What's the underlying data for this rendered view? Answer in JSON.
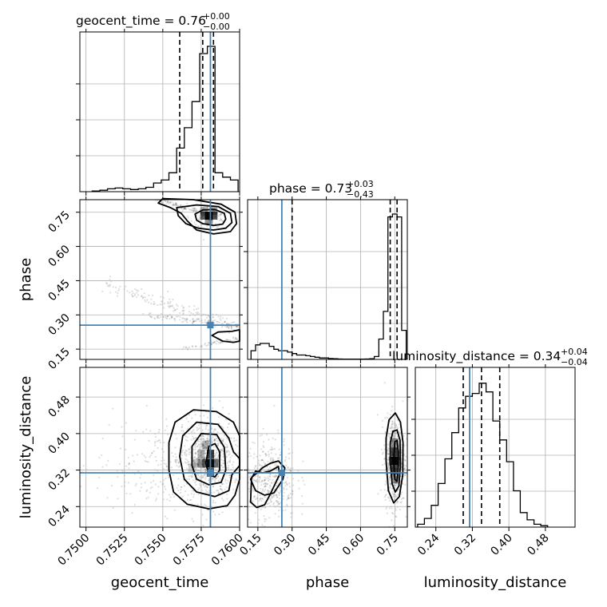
{
  "chart_data": {
    "type": "corner",
    "parameters": [
      "geocent_time",
      "phase",
      "luminosity_distance"
    ],
    "truth_color": "#4682b4",
    "truths": {
      "geocent_time": 0.7581,
      "phase": 0.255,
      "luminosity_distance": 0.314
    },
    "ranges": {
      "geocent_time": [
        0.7496,
        0.76
      ],
      "phase": [
        0.105,
        0.805
      ],
      "luminosity_distance": [
        0.195,
        0.545
      ]
    },
    "ticks": {
      "geocent_time": [
        "0.7500",
        "0.7525",
        "0.7550",
        "0.7575",
        "0.7600"
      ],
      "phase": [
        "0.15",
        "0.30",
        "0.45",
        "0.60",
        "0.75"
      ],
      "luminosity_distance": [
        "0.24",
        "0.32",
        "0.40",
        "0.48"
      ]
    },
    "titles": {
      "geocent_time": {
        "text": "geocent_time = 0.76",
        "plus": "+0.00",
        "minus": "−0.00"
      },
      "phase": {
        "text": "phase = 0.73",
        "plus": "+0.03",
        "minus": "−0.43"
      },
      "luminosity_distance": {
        "text": "luminosity_distance = 0.34",
        "plus": "+0.04",
        "minus": "−0.04"
      }
    },
    "quantiles": {
      "geocent_time": [
        0.7561,
        0.7576,
        0.7583
      ],
      "phase": [
        0.3,
        0.73,
        0.76
      ],
      "luminosity_distance": [
        0.3,
        0.34,
        0.38
      ]
    },
    "histograms": {
      "geocent_time": {
        "edges": [
          0.7504,
          0.7509,
          0.7514,
          0.7519,
          0.7524,
          0.7529,
          0.7534,
          0.7539,
          0.7544,
          0.7549,
          0.7554,
          0.7559,
          0.7564,
          0.7569,
          0.7574,
          0.7579,
          0.7584,
          0.7589,
          0.7594,
          0.7599
        ],
        "counts": [
          0.005,
          0.01,
          0.02,
          0.025,
          0.02,
          0.015,
          0.02,
          0.03,
          0.06,
          0.08,
          0.13,
          0.3,
          0.44,
          0.62,
          0.95,
          1.0,
          0.13,
          0.1,
          0.08
        ]
      },
      "phase": {
        "edges": [
          0.12,
          0.14,
          0.16,
          0.18,
          0.2,
          0.22,
          0.24,
          0.26,
          0.28,
          0.3,
          0.32,
          0.34,
          0.36,
          0.38,
          0.4,
          0.42,
          0.44,
          0.46,
          0.48,
          0.5,
          0.52,
          0.54,
          0.56,
          0.58,
          0.6,
          0.62,
          0.64,
          0.66,
          0.68,
          0.7,
          0.72,
          0.74,
          0.76,
          0.78,
          0.8
        ],
        "counts": [
          0.06,
          0.1,
          0.11,
          0.11,
          0.09,
          0.07,
          0.06,
          0.06,
          0.05,
          0.04,
          0.03,
          0.03,
          0.025,
          0.02,
          0.015,
          0.01,
          0.01,
          0.006,
          0.005,
          0.003,
          0.002,
          0.002,
          0.002,
          0.002,
          0.002,
          0.003,
          0.005,
          0.02,
          0.14,
          0.33,
          0.98,
          1.0,
          0.98,
          0.2
        ]
      },
      "luminosity_distance": {
        "edges": [
          0.2,
          0.215,
          0.23,
          0.245,
          0.26,
          0.275,
          0.29,
          0.305,
          0.32,
          0.335,
          0.35,
          0.365,
          0.38,
          0.395,
          0.41,
          0.425,
          0.44,
          0.455,
          0.47,
          0.485
        ],
        "counts": [
          0.02,
          0.06,
          0.15,
          0.3,
          0.47,
          0.65,
          0.82,
          0.9,
          0.92,
          0.99,
          0.93,
          0.73,
          0.6,
          0.45,
          0.25,
          0.1,
          0.05,
          0.02,
          0.01
        ]
      }
    },
    "contours": {
      "phase_vs_geocent_time": [
        [
          [
            0.7572,
            0.715
          ],
          [
            0.7576,
            0.7
          ],
          [
            0.7583,
            0.692
          ],
          [
            0.7589,
            0.698
          ],
          [
            0.7591,
            0.72
          ],
          [
            0.759,
            0.745
          ],
          [
            0.7584,
            0.762
          ],
          [
            0.7576,
            0.76
          ],
          [
            0.7571,
            0.742
          ],
          [
            0.7572,
            0.715
          ]
        ],
        [
          [
            0.756,
            0.735
          ],
          [
            0.7565,
            0.7
          ],
          [
            0.7573,
            0.68
          ],
          [
            0.7583,
            0.672
          ],
          [
            0.7591,
            0.68
          ],
          [
            0.7595,
            0.705
          ],
          [
            0.7594,
            0.745
          ],
          [
            0.7586,
            0.775
          ],
          [
            0.7572,
            0.782
          ],
          [
            0.7559,
            0.77
          ],
          [
            0.756,
            0.735
          ]
        ],
        [
          [
            0.7547,
            0.79
          ],
          [
            0.7555,
            0.77
          ],
          [
            0.7562,
            0.745
          ],
          [
            0.7566,
            0.712
          ],
          [
            0.7572,
            0.672
          ],
          [
            0.7583,
            0.655
          ],
          [
            0.7594,
            0.665
          ],
          [
            0.7598,
            0.7
          ],
          [
            0.7597,
            0.75
          ],
          [
            0.7588,
            0.785
          ],
          [
            0.757,
            0.805
          ],
          [
            0.755,
            0.81
          ],
          [
            0.7547,
            0.79
          ]
        ],
        [
          [
            0.7582,
            0.21
          ],
          [
            0.7589,
            0.185
          ],
          [
            0.7596,
            0.18
          ],
          [
            0.76,
            0.185
          ],
          [
            0.76,
            0.235
          ],
          [
            0.7595,
            0.228
          ],
          [
            0.7586,
            0.225
          ],
          [
            0.7582,
            0.21
          ]
        ]
      ],
      "luminosity_distance_vs_geocent_time": [
        [
          [
            0.7578,
            0.335
          ],
          [
            0.758,
            0.31
          ],
          [
            0.7584,
            0.305
          ],
          [
            0.7587,
            0.32
          ],
          [
            0.7587,
            0.36
          ],
          [
            0.7584,
            0.378
          ],
          [
            0.758,
            0.372
          ],
          [
            0.7578,
            0.335
          ]
        ],
        [
          [
            0.7569,
            0.33
          ],
          [
            0.7572,
            0.3
          ],
          [
            0.758,
            0.288
          ],
          [
            0.7588,
            0.293
          ],
          [
            0.7591,
            0.32
          ],
          [
            0.759,
            0.37
          ],
          [
            0.7585,
            0.398
          ],
          [
            0.7575,
            0.4
          ],
          [
            0.7569,
            0.372
          ],
          [
            0.7569,
            0.33
          ]
        ],
        [
          [
            0.7561,
            0.35
          ],
          [
            0.7564,
            0.3
          ],
          [
            0.7572,
            0.272
          ],
          [
            0.7584,
            0.262
          ],
          [
            0.7593,
            0.275
          ],
          [
            0.7595,
            0.31
          ],
          [
            0.76,
            0.33
          ],
          [
            0.76,
            0.345
          ],
          [
            0.7596,
            0.36
          ],
          [
            0.7593,
            0.39
          ],
          [
            0.7586,
            0.42
          ],
          [
            0.7572,
            0.425
          ],
          [
            0.7563,
            0.395
          ],
          [
            0.7561,
            0.35
          ]
        ],
        [
          [
            0.7554,
            0.32
          ],
          [
            0.7557,
            0.272
          ],
          [
            0.7566,
            0.245
          ],
          [
            0.758,
            0.235
          ],
          [
            0.7592,
            0.242
          ],
          [
            0.7597,
            0.265
          ],
          [
            0.76,
            0.3
          ],
          [
            0.76,
            0.395
          ],
          [
            0.7596,
            0.425
          ],
          [
            0.7585,
            0.448
          ],
          [
            0.757,
            0.452
          ],
          [
            0.7558,
            0.425
          ],
          [
            0.7554,
            0.38
          ],
          [
            0.7554,
            0.32
          ]
        ]
      ],
      "luminosity_distance_vs_phase": [
        [
          [
            0.745,
            0.34
          ],
          [
            0.75,
            0.3
          ],
          [
            0.76,
            0.295
          ],
          [
            0.765,
            0.32
          ],
          [
            0.766,
            0.36
          ],
          [
            0.76,
            0.385
          ],
          [
            0.75,
            0.382
          ],
          [
            0.745,
            0.34
          ]
        ],
        [
          [
            0.73,
            0.34
          ],
          [
            0.738,
            0.29
          ],
          [
            0.752,
            0.272
          ],
          [
            0.768,
            0.285
          ],
          [
            0.775,
            0.33
          ],
          [
            0.773,
            0.385
          ],
          [
            0.76,
            0.408
          ],
          [
            0.742,
            0.405
          ],
          [
            0.73,
            0.38
          ],
          [
            0.73,
            0.34
          ]
        ],
        [
          [
            0.712,
            0.34
          ],
          [
            0.722,
            0.275
          ],
          [
            0.745,
            0.248
          ],
          [
            0.77,
            0.262
          ],
          [
            0.785,
            0.31
          ],
          [
            0.786,
            0.38
          ],
          [
            0.775,
            0.425
          ],
          [
            0.752,
            0.445
          ],
          [
            0.725,
            0.43
          ],
          [
            0.712,
            0.39
          ],
          [
            0.712,
            0.34
          ]
        ],
        [
          [
            0.118,
            0.3
          ],
          [
            0.14,
            0.275
          ],
          [
            0.18,
            0.265
          ],
          [
            0.22,
            0.27
          ],
          [
            0.26,
            0.3
          ],
          [
            0.268,
            0.325
          ],
          [
            0.24,
            0.34
          ],
          [
            0.205,
            0.335
          ],
          [
            0.17,
            0.325
          ],
          [
            0.15,
            0.315
          ],
          [
            0.125,
            0.305
          ],
          [
            0.118,
            0.3
          ]
        ],
        [
          [
            0.118,
            0.25
          ],
          [
            0.145,
            0.238
          ],
          [
            0.18,
            0.244
          ],
          [
            0.205,
            0.268
          ],
          [
            0.245,
            0.31
          ],
          [
            0.24,
            0.328
          ],
          [
            0.205,
            0.318
          ],
          [
            0.17,
            0.314
          ],
          [
            0.14,
            0.318
          ],
          [
            0.122,
            0.302
          ],
          [
            0.118,
            0.25
          ]
        ]
      ]
    },
    "density_cells": {
      "phase_vs_geocent_time": [
        [
          0.758,
          0.735,
          1.0
        ],
        [
          0.7577,
          0.735,
          0.6
        ],
        [
          0.7583,
          0.735,
          0.7
        ],
        [
          0.758,
          0.715,
          0.35
        ],
        [
          0.7583,
          0.755,
          0.3
        ],
        [
          0.7577,
          0.755,
          0.25
        ]
      ],
      "luminosity_distance_vs_geocent_time": [
        [
          0.7581,
          0.335,
          1.0
        ],
        [
          0.7581,
          0.355,
          0.8
        ],
        [
          0.7581,
          0.315,
          0.6
        ],
        [
          0.7578,
          0.335,
          0.5
        ],
        [
          0.7584,
          0.335,
          0.55
        ],
        [
          0.7575,
          0.335,
          0.25
        ],
        [
          0.7575,
          0.355,
          0.2
        ],
        [
          0.7578,
          0.375,
          0.2
        ],
        [
          0.7572,
          0.335,
          0.12
        ],
        [
          0.7569,
          0.325,
          0.08
        ]
      ],
      "luminosity_distance_vs_phase": [
        [
          0.75,
          0.34,
          1.0
        ],
        [
          0.75,
          0.32,
          0.75
        ],
        [
          0.75,
          0.36,
          0.75
        ],
        [
          0.74,
          0.34,
          0.45
        ],
        [
          0.76,
          0.34,
          0.45
        ],
        [
          0.75,
          0.38,
          0.35
        ],
        [
          0.75,
          0.3,
          0.3
        ]
      ]
    }
  }
}
